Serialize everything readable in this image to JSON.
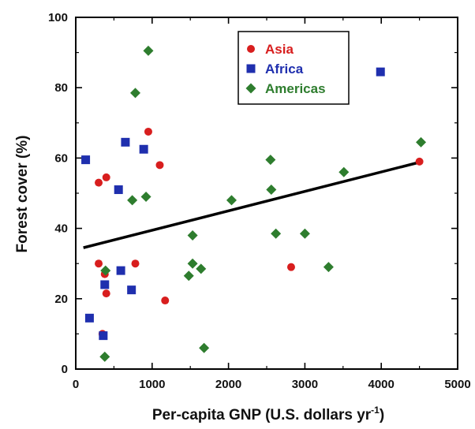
{
  "chart_data": {
    "type": "scatter",
    "title": "",
    "xlabel": "Per-capita GNP (U.S. dollars yr",
    "xlabel_superscript": "-1",
    "xlabel_suffix": ")",
    "ylabel": "Forest cover (%)",
    "xlim": [
      0,
      5000
    ],
    "ylim": [
      0,
      100
    ],
    "xticks": [
      0,
      1000,
      2000,
      3000,
      4000,
      5000
    ],
    "yticks": [
      0,
      20,
      40,
      60,
      80,
      100
    ],
    "grid": false,
    "legend_position": "top-center",
    "series": [
      {
        "name": "Asia",
        "marker": "circle",
        "color": "#d81e1e",
        "points": [
          [
            300,
            53
          ],
          [
            400,
            54.5
          ],
          [
            950,
            67.5
          ],
          [
            1100,
            58
          ],
          [
            300,
            30
          ],
          [
            780,
            30
          ],
          [
            380,
            27
          ],
          [
            400,
            21.5
          ],
          [
            1170,
            19.5
          ],
          [
            350,
            10
          ],
          [
            2820,
            29
          ],
          [
            4500,
            59
          ]
        ]
      },
      {
        "name": "Africa",
        "marker": "square",
        "color": "#1f2fae",
        "points": [
          [
            130,
            59.5
          ],
          [
            650,
            64.5
          ],
          [
            890,
            62.5
          ],
          [
            560,
            51
          ],
          [
            590,
            28
          ],
          [
            380,
            24
          ],
          [
            730,
            22.5
          ],
          [
            180,
            14.5
          ],
          [
            360,
            9.5
          ],
          [
            3990,
            84.5
          ]
        ]
      },
      {
        "name": "Americas",
        "marker": "diamond",
        "color": "#2e7d2e",
        "points": [
          [
            950,
            90.5
          ],
          [
            780,
            78.5
          ],
          [
            740,
            48
          ],
          [
            920,
            49
          ],
          [
            390,
            28
          ],
          [
            1530,
            38
          ],
          [
            1530,
            30
          ],
          [
            1480,
            26.5
          ],
          [
            1640,
            28.5
          ],
          [
            1680,
            6
          ],
          [
            380,
            3.5
          ],
          [
            2040,
            48
          ],
          [
            2550,
            59.5
          ],
          [
            2560,
            51
          ],
          [
            2620,
            38.5
          ],
          [
            3000,
            38.5
          ],
          [
            3310,
            29
          ],
          [
            3510,
            56
          ],
          [
            4520,
            64.5
          ]
        ]
      }
    ],
    "trendline": {
      "x": [
        100,
        4500
      ],
      "y": [
        34.5,
        58.8
      ],
      "color": "#000000"
    }
  }
}
